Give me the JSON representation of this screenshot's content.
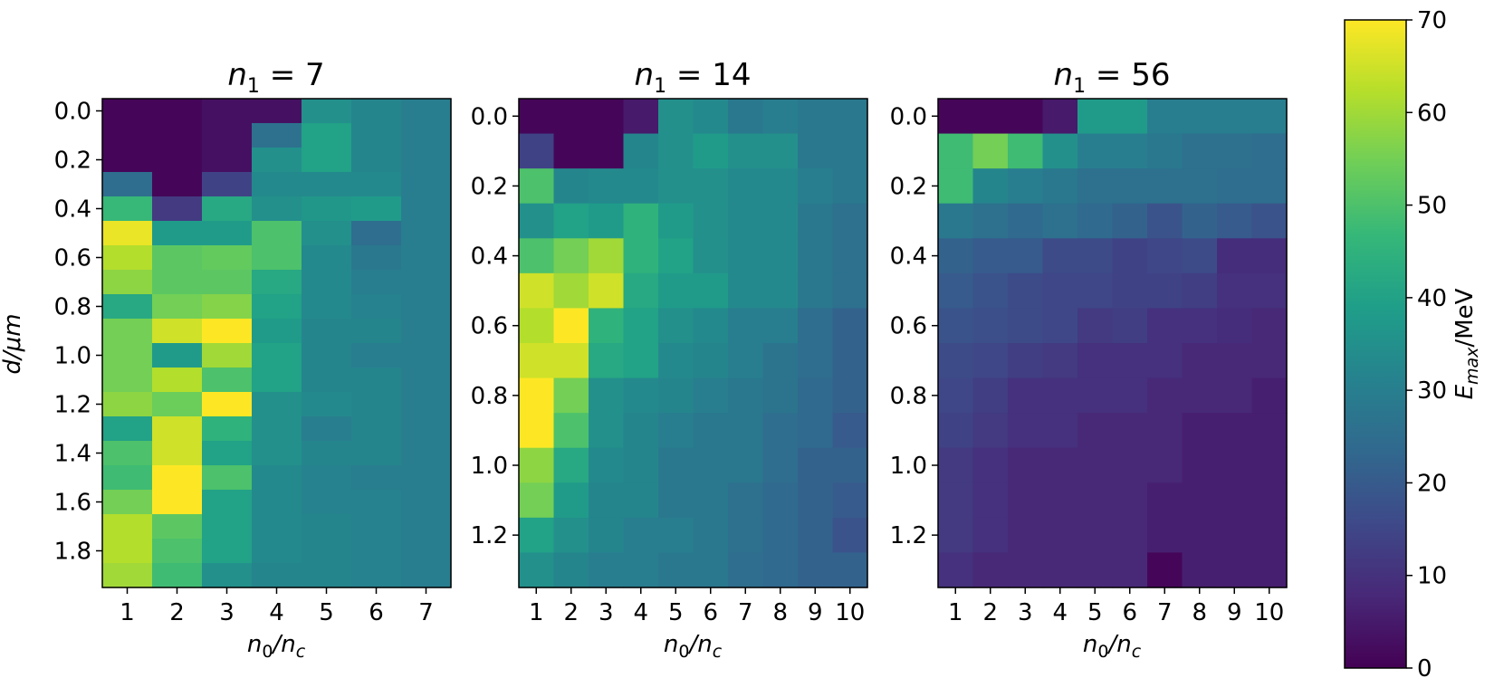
{
  "colorscale": {
    "stops": [
      "#440154",
      "#482878",
      "#3e4989",
      "#31688e",
      "#26828e",
      "#1f9e89",
      "#35b779",
      "#6ece58",
      "#b5de2b",
      "#fde725"
    ],
    "min": 0,
    "max": 70,
    "label_main": "E",
    "label_sub": "max",
    "label_unit": "/MeV",
    "ticks": [
      "0",
      "10",
      "20",
      "30",
      "40",
      "50",
      "60",
      "70"
    ]
  },
  "chart_data": [
    {
      "type": "heatmap",
      "title_main": "n",
      "title_sub": "1",
      "title_rest": " = 7",
      "xlabel_main": "n",
      "xlabel_sub1": "0",
      "xlabel_mid": "/n",
      "xlabel_sub2": "c",
      "ylabel": "d/μm",
      "x": [
        "1",
        "2",
        "3",
        "4",
        "5",
        "6",
        "7"
      ],
      "y": [
        0.0,
        0.1,
        0.2,
        0.3,
        0.4,
        0.5,
        0.6,
        0.7,
        0.8,
        0.9,
        1.0,
        1.1,
        1.2,
        1.3,
        1.4,
        1.5,
        1.6,
        1.7,
        1.8,
        1.9
      ],
      "ytick_labels": [
        "0.0",
        "0.2",
        "0.4",
        "0.6",
        "0.8",
        "1.0",
        "1.2",
        "1.4",
        "1.6",
        "1.8"
      ],
      "ytick_values": [
        0.0,
        0.2,
        0.4,
        0.6,
        0.8,
        1.0,
        1.2,
        1.4,
        1.6,
        1.8
      ],
      "values": [
        [
          1,
          1,
          3,
          3,
          35,
          32,
          30
        ],
        [
          1,
          1,
          3,
          26,
          40,
          32,
          30
        ],
        [
          1,
          1,
          3,
          35,
          40,
          32,
          30
        ],
        [
          25,
          1,
          14,
          33,
          33,
          33,
          30
        ],
        [
          47,
          12,
          42,
          35,
          37,
          38,
          30
        ],
        [
          68,
          38,
          38,
          50,
          35,
          25,
          30
        ],
        [
          62,
          52,
          53,
          50,
          33,
          28,
          30
        ],
        [
          58,
          52,
          52,
          42,
          33,
          30,
          30
        ],
        [
          42,
          55,
          57,
          40,
          33,
          31,
          30
        ],
        [
          55,
          65,
          70,
          38,
          32,
          32,
          30
        ],
        [
          55,
          38,
          60,
          40,
          32,
          30,
          30
        ],
        [
          55,
          62,
          50,
          40,
          32,
          32,
          30
        ],
        [
          58,
          54,
          70,
          35,
          33,
          32,
          30
        ],
        [
          40,
          65,
          45,
          35,
          30,
          32,
          30
        ],
        [
          50,
          65,
          40,
          35,
          32,
          32,
          30
        ],
        [
          48,
          70,
          50,
          33,
          31,
          30,
          30
        ],
        [
          55,
          70,
          40,
          33,
          31,
          31,
          30
        ],
        [
          62,
          52,
          40,
          33,
          32,
          31,
          30
        ],
        [
          62,
          50,
          40,
          33,
          32,
          31,
          30
        ],
        [
          60,
          48,
          35,
          32,
          32,
          31,
          30
        ]
      ]
    },
    {
      "type": "heatmap",
      "title_main": "n",
      "title_sub": "1",
      "title_rest": " = 14",
      "xlabel_main": "n",
      "xlabel_sub1": "0",
      "xlabel_mid": "/n",
      "xlabel_sub2": "c",
      "ylabel": "",
      "x": [
        "1",
        "2",
        "3",
        "4",
        "5",
        "6",
        "7",
        "8",
        "9",
        "10"
      ],
      "y": [
        0.0,
        0.1,
        0.2,
        0.3,
        0.4,
        0.5,
        0.6,
        0.7,
        0.8,
        0.9,
        1.0,
        1.1,
        1.2,
        1.3
      ],
      "ytick_labels": [
        "0.0",
        "0.2",
        "0.4",
        "0.6",
        "0.8",
        "1.0",
        "1.2"
      ],
      "ytick_values": [
        0.0,
        0.2,
        0.4,
        0.6,
        0.8,
        1.0,
        1.2
      ],
      "values": [
        [
          1,
          1,
          1,
          5,
          35,
          33,
          28,
          30,
          28,
          28
        ],
        [
          14,
          1,
          1,
          32,
          35,
          38,
          35,
          35,
          28,
          28
        ],
        [
          50,
          32,
          33,
          33,
          35,
          35,
          33,
          33,
          30,
          28
        ],
        [
          35,
          40,
          38,
          45,
          38,
          35,
          33,
          33,
          28,
          26
        ],
        [
          50,
          55,
          60,
          45,
          40,
          35,
          33,
          33,
          28,
          26
        ],
        [
          65,
          60,
          65,
          42,
          38,
          38,
          33,
          33,
          28,
          26
        ],
        [
          62,
          70,
          45,
          40,
          35,
          33,
          30,
          30,
          25,
          22
        ],
        [
          65,
          65,
          42,
          40,
          33,
          32,
          30,
          27,
          25,
          22
        ],
        [
          70,
          55,
          35,
          33,
          32,
          30,
          28,
          27,
          24,
          22
        ],
        [
          70,
          50,
          35,
          32,
          30,
          28,
          28,
          25,
          24,
          20
        ],
        [
          58,
          42,
          33,
          32,
          28,
          28,
          28,
          25,
          22,
          22
        ],
        [
          55,
          38,
          32,
          32,
          28,
          28,
          26,
          24,
          22,
          20
        ],
        [
          40,
          35,
          32,
          30,
          30,
          28,
          26,
          24,
          22,
          18
        ],
        [
          35,
          32,
          30,
          30,
          28,
          28,
          25,
          24,
          22,
          22
        ]
      ]
    },
    {
      "type": "heatmap",
      "title_main": "n",
      "title_sub": "1",
      "title_rest": " = 56",
      "xlabel_main": "n",
      "xlabel_sub1": "0",
      "xlabel_mid": "/n",
      "xlabel_sub2": "c",
      "ylabel": "",
      "x": [
        "1",
        "2",
        "3",
        "4",
        "5",
        "6",
        "7",
        "8",
        "9",
        "10"
      ],
      "y": [
        0.0,
        0.1,
        0.2,
        0.3,
        0.4,
        0.5,
        0.6,
        0.7,
        0.8,
        0.9,
        1.0,
        1.1,
        1.2,
        1.3
      ],
      "ytick_labels": [
        "0.0",
        "0.2",
        "0.4",
        "0.6",
        "0.8",
        "1.0",
        "1.2"
      ],
      "ytick_values": [
        0.0,
        0.2,
        0.4,
        0.6,
        0.8,
        1.0,
        1.2
      ],
      "values": [
        [
          1,
          1,
          1,
          5,
          38,
          38,
          30,
          30,
          30,
          30
        ],
        [
          48,
          55,
          48,
          35,
          30,
          30,
          28,
          26,
          26,
          25
        ],
        [
          48,
          32,
          30,
          28,
          26,
          26,
          26,
          26,
          25,
          25
        ],
        [
          28,
          26,
          24,
          26,
          24,
          22,
          18,
          22,
          20,
          18
        ],
        [
          22,
          20,
          20,
          16,
          16,
          14,
          15,
          16,
          9,
          9
        ],
        [
          20,
          18,
          16,
          15,
          15,
          14,
          14,
          13,
          10,
          10
        ],
        [
          18,
          17,
          16,
          15,
          12,
          13,
          10,
          10,
          9,
          8
        ],
        [
          16,
          15,
          13,
          12,
          10,
          10,
          10,
          8,
          8,
          8
        ],
        [
          15,
          13,
          10,
          10,
          10,
          10,
          8,
          8,
          8,
          6
        ],
        [
          14,
          12,
          10,
          10,
          8,
          8,
          8,
          6,
          6,
          6
        ],
        [
          12,
          10,
          8,
          8,
          8,
          8,
          8,
          6,
          6,
          6
        ],
        [
          12,
          10,
          8,
          8,
          8,
          8,
          6,
          6,
          6,
          6
        ],
        [
          12,
          10,
          8,
          8,
          8,
          8,
          6,
          6,
          6,
          6
        ],
        [
          10,
          8,
          8,
          8,
          8,
          8,
          1,
          6,
          6,
          6
        ]
      ]
    }
  ]
}
